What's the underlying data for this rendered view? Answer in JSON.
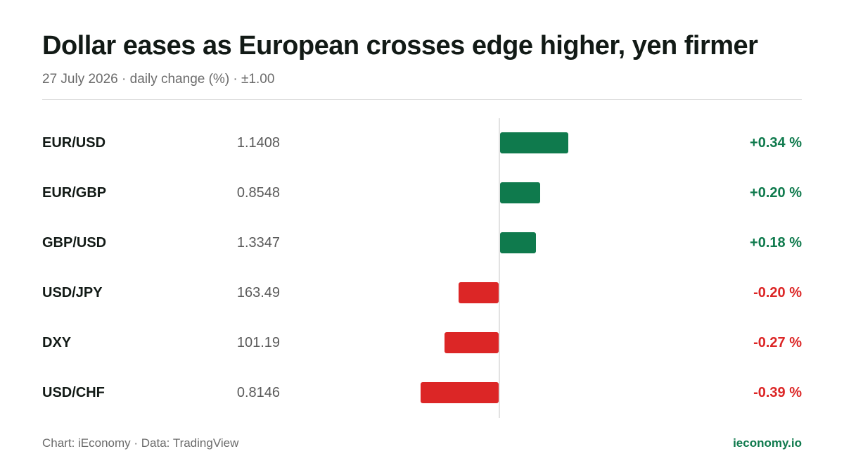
{
  "title": "Dollar eases as European crosses edge higher, yen firmer",
  "subtitle": "27 July 2026 · daily change (%) · ±1.00",
  "colors": {
    "positive": "#0f7a4d",
    "negative": "#dc2626",
    "brand": "#0f7a4d"
  },
  "chart_data": {
    "type": "bar",
    "orientation": "horizontal",
    "title": "Dollar eases as European crosses edge higher, yen firmer",
    "subtitle": "27 July 2026 · daily change (%) · ±1.00",
    "xlim": [
      -1.0,
      1.0
    ],
    "grid": false,
    "categories": [
      "EUR/USD",
      "EUR/GBP",
      "GBP/USD",
      "USD/JPY",
      "DXY",
      "USD/CHF"
    ],
    "rates": [
      "1.1408",
      "0.8548",
      "1.3347",
      "163.49",
      "101.19",
      "0.8146"
    ],
    "values": [
      0.34,
      0.2,
      0.18,
      -0.2,
      -0.27,
      -0.39
    ],
    "value_labels": [
      "+0.34 %",
      "+0.20 %",
      "+0.18 %",
      "-0.20 %",
      "-0.27 %",
      "-0.39 %"
    ]
  },
  "footer": {
    "source": "Chart: iEconomy · Data: TradingView",
    "brand": "ieconomy.io"
  }
}
